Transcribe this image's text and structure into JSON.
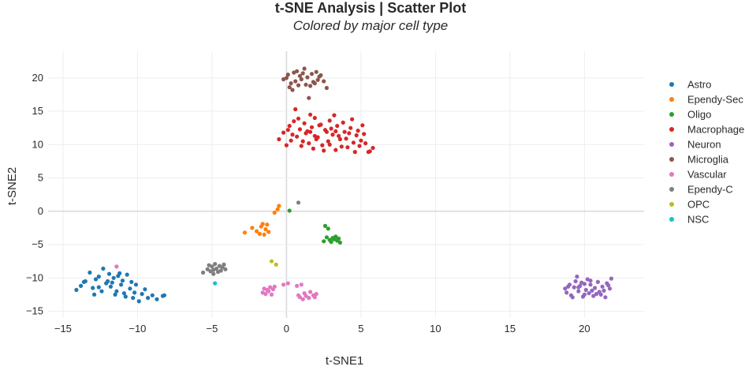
{
  "chart_data": {
    "type": "scatter",
    "title": "t-SNE Analysis | Scatter Plot",
    "subtitle": "Colored by major cell type",
    "xlabel": "t-SNE1",
    "ylabel": "t-SNE2",
    "xlim": [
      -16,
      24
    ],
    "ylim": [
      -16,
      24
    ],
    "x_ticks": [
      -15,
      -10,
      -5,
      0,
      5,
      10,
      15,
      20
    ],
    "y_ticks": [
      -15,
      -10,
      -5,
      0,
      5,
      10,
      15,
      20
    ],
    "grid": true,
    "legend_position": "top-right",
    "series": [
      {
        "name": "Astro",
        "color": "#1f77b4",
        "points": [
          [
            -14.1,
            -11.8
          ],
          [
            -13.8,
            -11.2
          ],
          [
            -13.5,
            -10.5
          ],
          [
            -13.2,
            -9.2
          ],
          [
            -13.0,
            -11.5
          ],
          [
            -12.8,
            -10.2
          ],
          [
            -12.6,
            -9.8
          ],
          [
            -12.4,
            -12.0
          ],
          [
            -12.3,
            -8.6
          ],
          [
            -12.1,
            -10.8
          ],
          [
            -11.9,
            -9.4
          ],
          [
            -11.8,
            -11.3
          ],
          [
            -11.6,
            -10.0
          ],
          [
            -11.5,
            -12.5
          ],
          [
            -11.3,
            -9.7
          ],
          [
            -11.1,
            -11.0
          ],
          [
            -11.0,
            -10.4
          ],
          [
            -10.8,
            -12.8
          ],
          [
            -10.7,
            -9.5
          ],
          [
            -10.5,
            -11.6
          ],
          [
            -10.4,
            -10.6
          ],
          [
            -10.2,
            -12.2
          ],
          [
            -10.1,
            -11.0
          ],
          [
            -9.9,
            -13.5
          ],
          [
            -9.7,
            -12.4
          ],
          [
            -9.5,
            -11.7
          ],
          [
            -9.3,
            -13.0
          ],
          [
            -9.0,
            -12.6
          ],
          [
            -8.7,
            -13.2
          ],
          [
            -8.3,
            -12.7
          ],
          [
            -8.2,
            -12.6
          ],
          [
            -12.0,
            -10.5
          ],
          [
            -12.6,
            -11.4
          ],
          [
            -11.4,
            -12.0
          ],
          [
            -10.9,
            -12.3
          ],
          [
            -10.3,
            -13.0
          ],
          [
            -11.7,
            -10.7
          ],
          [
            -12.9,
            -12.5
          ],
          [
            -13.6,
            -10.6
          ],
          [
            -11.2,
            -9.3
          ]
        ]
      },
      {
        "name": "Ependy-Sec",
        "color": "#ff7f0e",
        "points": [
          [
            -2.8,
            -3.2
          ],
          [
            -2.3,
            -2.5
          ],
          [
            -2.0,
            -3.0
          ],
          [
            -1.8,
            -3.4
          ],
          [
            -1.7,
            -2.3
          ],
          [
            -1.6,
            -1.9
          ],
          [
            -1.5,
            -3.5
          ],
          [
            -1.4,
            -2.7
          ],
          [
            -1.3,
            -2.0
          ],
          [
            -1.2,
            -3.1
          ],
          [
            -0.8,
            -0.2
          ],
          [
            -0.6,
            0.3
          ],
          [
            -0.5,
            0.8
          ]
        ]
      },
      {
        "name": "Oligo",
        "color": "#2ca02c",
        "points": [
          [
            0.2,
            0.1
          ],
          [
            2.6,
            -2.2
          ],
          [
            2.8,
            -2.6
          ],
          [
            2.7,
            -3.9
          ],
          [
            2.9,
            -4.3
          ],
          [
            3.0,
            -4.6
          ],
          [
            3.1,
            -4.0
          ],
          [
            3.2,
            -4.2
          ],
          [
            3.3,
            -3.8
          ],
          [
            3.4,
            -4.4
          ],
          [
            3.5,
            -4.1
          ],
          [
            3.6,
            -4.7
          ],
          [
            2.5,
            -4.5
          ]
        ]
      },
      {
        "name": "Macrophage",
        "color": "#d62728",
        "points": [
          [
            -0.2,
            11.8
          ],
          [
            0.2,
            12.8
          ],
          [
            0.3,
            10.6
          ],
          [
            0.5,
            13.5
          ],
          [
            0.7,
            11.2
          ],
          [
            0.9,
            12.3
          ],
          [
            1.0,
            9.8
          ],
          [
            1.2,
            13.2
          ],
          [
            1.3,
            11.7
          ],
          [
            1.5,
            10.2
          ],
          [
            1.7,
            12.6
          ],
          [
            1.8,
            9.4
          ],
          [
            1.9,
            14.0
          ],
          [
            2.1,
            11.1
          ],
          [
            2.3,
            13.0
          ],
          [
            2.4,
            9.9
          ],
          [
            2.6,
            12.2
          ],
          [
            2.8,
            10.5
          ],
          [
            2.9,
            13.6
          ],
          [
            3.1,
            11.5
          ],
          [
            3.3,
            9.2
          ],
          [
            3.4,
            12.8
          ],
          [
            3.6,
            10.8
          ],
          [
            3.8,
            13.3
          ],
          [
            3.9,
            11.9
          ],
          [
            4.1,
            9.6
          ],
          [
            4.3,
            12.5
          ],
          [
            4.5,
            10.3
          ],
          [
            4.7,
            11.4
          ],
          [
            4.9,
            9.8
          ],
          [
            5.1,
            12.9
          ],
          [
            5.3,
            10.2
          ],
          [
            5.5,
            8.9
          ],
          [
            5.8,
            9.5
          ],
          [
            0.6,
            15.3
          ],
          [
            1.6,
            14.5
          ],
          [
            2.0,
            10.8
          ],
          [
            2.7,
            11.9
          ],
          [
            3.2,
            14.4
          ],
          [
            4.0,
            10.9
          ],
          [
            4.4,
            13.8
          ],
          [
            0.0,
            9.9
          ],
          [
            1.1,
            10.5
          ],
          [
            2.2,
            12.9
          ],
          [
            3.5,
            11.3
          ],
          [
            4.8,
            12.1
          ],
          [
            -0.5,
            10.8
          ],
          [
            0.4,
            11.5
          ],
          [
            1.4,
            12.0
          ],
          [
            2.5,
            9.1
          ],
          [
            3.7,
            9.7
          ],
          [
            4.6,
            8.9
          ],
          [
            5.0,
            10.6
          ],
          [
            5.2,
            11.6
          ],
          [
            0.8,
            13.9
          ],
          [
            1.9,
            11.3
          ],
          [
            3.0,
            12.4
          ],
          [
            4.2,
            11.7
          ],
          [
            2.9,
            10.0
          ],
          [
            1.6,
            11.9
          ],
          [
            5.6,
            9.0
          ],
          [
            0.1,
            12.2
          ],
          [
            3.3,
            12.0
          ]
        ]
      },
      {
        "name": "Neuron",
        "color": "#9467bd",
        "points": [
          [
            18.7,
            -11.6
          ],
          [
            18.8,
            -12.2
          ],
          [
            19.0,
            -11.0
          ],
          [
            19.1,
            -12.6
          ],
          [
            19.3,
            -11.4
          ],
          [
            19.4,
            -10.5
          ],
          [
            19.6,
            -12.0
          ],
          [
            19.7,
            -11.2
          ],
          [
            19.9,
            -12.8
          ],
          [
            20.0,
            -10.9
          ],
          [
            20.1,
            -11.8
          ],
          [
            20.3,
            -12.3
          ],
          [
            20.4,
            -11.0
          ],
          [
            20.6,
            -12.7
          ],
          [
            20.7,
            -11.5
          ],
          [
            20.9,
            -10.6
          ],
          [
            21.0,
            -12.1
          ],
          [
            21.2,
            -11.3
          ],
          [
            21.4,
            -12.9
          ],
          [
            21.5,
            -10.8
          ],
          [
            21.7,
            -11.6
          ],
          [
            21.8,
            -10.1
          ],
          [
            19.5,
            -9.8
          ],
          [
            20.2,
            -10.2
          ],
          [
            20.8,
            -12.4
          ],
          [
            19.2,
            -12.9
          ],
          [
            21.1,
            -12.5
          ],
          [
            18.9,
            -11.3
          ],
          [
            20.5,
            -11.9
          ],
          [
            19.8,
            -10.7
          ],
          [
            21.3,
            -11.9
          ],
          [
            20.0,
            -12.5
          ],
          [
            19.6,
            -11.4
          ],
          [
            21.6,
            -11.1
          ],
          [
            20.4,
            -10.4
          ]
        ]
      },
      {
        "name": "Microglia",
        "color": "#8c564b",
        "points": [
          [
            -0.2,
            19.8
          ],
          [
            0.1,
            20.5
          ],
          [
            0.2,
            18.6
          ],
          [
            0.3,
            19.2
          ],
          [
            0.5,
            20.8
          ],
          [
            0.6,
            19.5
          ],
          [
            0.8,
            18.9
          ],
          [
            0.9,
            20.3
          ],
          [
            1.0,
            19.8
          ],
          [
            1.2,
            21.4
          ],
          [
            1.3,
            19.0
          ],
          [
            1.4,
            20.1
          ],
          [
            1.6,
            18.8
          ],
          [
            1.7,
            20.6
          ],
          [
            1.8,
            19.4
          ],
          [
            2.0,
            20.9
          ],
          [
            2.1,
            19.7
          ],
          [
            2.2,
            20.2
          ],
          [
            2.5,
            19.5
          ],
          [
            2.7,
            18.5
          ],
          [
            0.4,
            18.2
          ],
          [
            1.5,
            17.0
          ],
          [
            0.7,
            21.0
          ],
          [
            1.9,
            19.2
          ],
          [
            0.0,
            20.0
          ],
          [
            1.1,
            20.7
          ],
          [
            2.3,
            20.4
          ]
        ]
      },
      {
        "name": "Vascular",
        "color": "#e377c2",
        "points": [
          [
            -11.4,
            -8.3
          ],
          [
            -1.6,
            -12.2
          ],
          [
            -1.5,
            -11.6
          ],
          [
            -1.4,
            -12.4
          ],
          [
            -1.3,
            -11.8
          ],
          [
            -1.2,
            -12.0
          ],
          [
            -1.1,
            -11.4
          ],
          [
            -1.0,
            -12.5
          ],
          [
            -0.9,
            -11.7
          ],
          [
            -0.8,
            -11.3
          ],
          [
            -0.2,
            -11.0
          ],
          [
            0.1,
            -10.8
          ],
          [
            0.7,
            -11.2
          ],
          [
            0.8,
            -12.6
          ],
          [
            0.9,
            -12.9
          ],
          [
            1.0,
            -11.0
          ],
          [
            1.1,
            -13.2
          ],
          [
            1.2,
            -12.3
          ],
          [
            1.3,
            -12.7
          ],
          [
            1.5,
            -13.0
          ],
          [
            1.6,
            -12.1
          ],
          [
            1.8,
            -12.6
          ],
          [
            1.9,
            -12.9
          ],
          [
            2.0,
            -12.4
          ]
        ]
      },
      {
        "name": "Ependy-C",
        "color": "#7f7f7f",
        "points": [
          [
            -5.6,
            -9.2
          ],
          [
            -5.3,
            -8.7
          ],
          [
            -5.1,
            -9.0
          ],
          [
            -5.0,
            -8.3
          ],
          [
            -4.9,
            -8.8
          ],
          [
            -4.8,
            -7.9
          ],
          [
            -4.7,
            -8.6
          ],
          [
            -4.6,
            -9.1
          ],
          [
            -4.5,
            -8.2
          ],
          [
            -4.4,
            -8.9
          ],
          [
            -4.3,
            -8.4
          ],
          [
            -4.2,
            -8.0
          ],
          [
            -4.1,
            -8.7
          ],
          [
            -4.9,
            -9.4
          ],
          [
            -5.2,
            -8.1
          ],
          [
            0.8,
            1.3
          ]
        ]
      },
      {
        "name": "OPC",
        "color": "#bcbd22",
        "points": [
          [
            -1.0,
            -7.5
          ],
          [
            -0.7,
            -8.0
          ]
        ]
      },
      {
        "name": "NSC",
        "color": "#17becf",
        "points": [
          [
            -4.8,
            -10.8
          ]
        ]
      }
    ]
  }
}
